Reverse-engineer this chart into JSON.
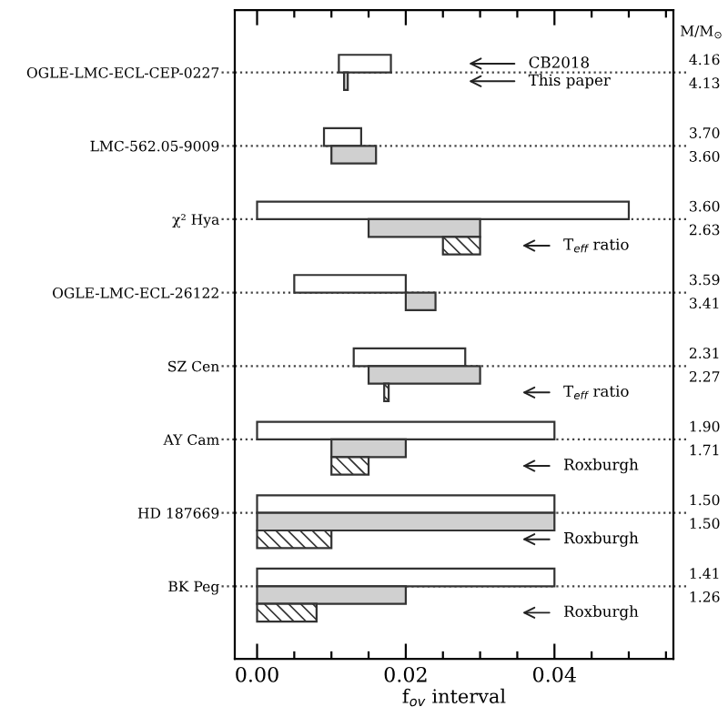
{
  "chart_data": {
    "type": "bar",
    "orientation": "horizontal",
    "categories": [
      "OGLE-LMC-ECL-CEP-0227",
      "LMC-562.05-9009",
      "χ² Hya",
      "OGLE-LMC-ECL-26122",
      "SZ Cen",
      "AY Cam",
      "HD 187669",
      "BK Peg"
    ],
    "series": [
      {
        "color": "#ffffff",
        "base": [
          0.011,
          0.009,
          0.0,
          0.005,
          0.013,
          0.0,
          0.0,
          0.0
        ],
        "values": [
          0.007,
          0.005,
          0.05,
          0.015,
          0.015,
          0.04,
          0.04,
          0.04
        ]
      },
      {
        "color": "#d0d0d0",
        "base": [
          0.0117,
          0.01,
          0.015,
          0.02,
          0.015,
          0.01,
          0.0,
          0.0
        ],
        "values": [
          0.0005,
          0.006,
          0.015,
          0.004,
          0.015,
          0.01,
          0.04,
          0.02
        ]
      },
      {
        "color": "#333333",
        "base": [
          null,
          null,
          0.025,
          null,
          0.0171,
          0.01,
          0.0,
          0.0
        ],
        "values": [
          null,
          null,
          0.005,
          null,
          0.0006,
          0.005,
          0.01,
          0.008
        ]
      }
    ],
    "xlabel": "f$_{ov}$ interval",
    "y2label": "M/M$_{⊙}$",
    "xlim": [
      -0.003,
      0.056
    ],
    "xticks": [
      {
        "value": 0,
        "label": "0.00"
      },
      {
        "value": 0.005,
        "label": null
      },
      {
        "value": 0.01,
        "label": null
      },
      {
        "value": 0.015,
        "label": null
      },
      {
        "value": 0.02,
        "label": "0.02"
      },
      {
        "value": 0.025,
        "label": null
      },
      {
        "value": 0.03,
        "label": null
      },
      {
        "value": 0.035,
        "label": null
      },
      {
        "value": 0.04,
        "label": "0.04"
      },
      {
        "value": 0.045,
        "label": null
      },
      {
        "value": 0.05,
        "label": null
      },
      {
        "value": 0.055,
        "label": null
      }
    ],
    "grid": "y",
    "annotations": [
      "4.16",
      "4.13",
      "3.70",
      "3.60",
      "3.60",
      "2.63",
      "3.59",
      "3.41",
      "2.31",
      "2.27",
      "1.90",
      "1.71",
      "1.50",
      "1.50",
      "1.41",
      "1.26",
      "CB2018",
      "This paper",
      "T$_{eff}$ ratio",
      "T$_{eff}$ ratio",
      "Roxburgh",
      "Roxburgh",
      "Roxburgh"
    ]
  }
}
